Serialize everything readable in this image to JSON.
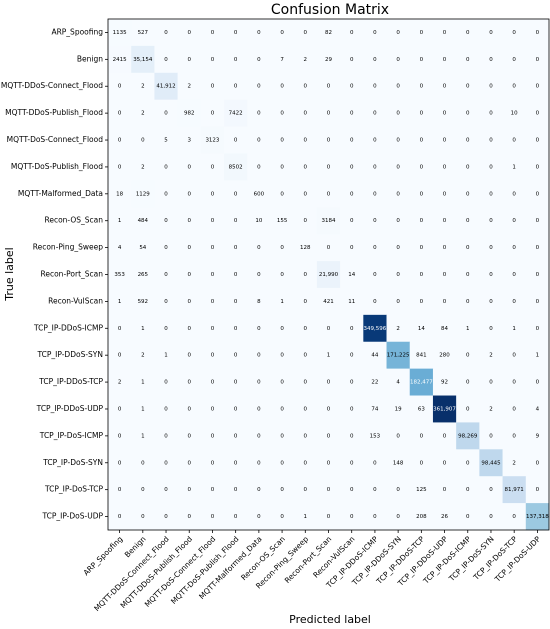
{
  "chart_data": {
    "type": "heatmap",
    "title": "Confusion Matrix",
    "x_label": "Predicted label",
    "y_label": "True label",
    "colormap": "Blues",
    "categories": [
      "ARP_Spoofing",
      "Benign",
      "MQTT-DDoS-Connect_Flood",
      "MQTT-DDoS-Publish_Flood",
      "MQTT-DoS-Connect_Flood",
      "MQTT-DoS-Publish_Flood",
      "MQTT-Malformed_Data",
      "Recon-OS_Scan",
      "Recon-Ping_Sweep",
      "Recon-Port_Scan",
      "Recon-VulScan",
      "TCP_IP-DDoS-ICMP",
      "TCP_IP-DDoS-SYN",
      "TCP_IP-DDoS-TCP",
      "TCP_IP-DDoS-UDP",
      "TCP_IP-DoS-ICMP",
      "TCP_IP-DoS-SYN",
      "TCP_IP-DoS-TCP",
      "TCP_IP-DoS-UDP"
    ],
    "values": [
      [
        1135,
        527,
        0,
        0,
        0,
        0,
        0,
        0,
        0,
        82,
        0,
        0,
        0,
        0,
        0,
        0,
        0,
        0,
        0
      ],
      [
        2415,
        35154,
        0,
        0,
        0,
        0,
        0,
        7,
        2,
        29,
        0,
        0,
        0,
        0,
        0,
        0,
        0,
        0,
        0
      ],
      [
        0,
        2,
        41912,
        2,
        0,
        0,
        0,
        0,
        0,
        0,
        0,
        0,
        0,
        0,
        0,
        0,
        0,
        0,
        0
      ],
      [
        0,
        2,
        0,
        982,
        0,
        7422,
        0,
        0,
        0,
        0,
        0,
        0,
        0,
        0,
        0,
        0,
        0,
        10,
        0
      ],
      [
        0,
        0,
        5,
        3,
        3123,
        0,
        0,
        0,
        0,
        0,
        0,
        0,
        0,
        0,
        0,
        0,
        0,
        0,
        0
      ],
      [
        0,
        2,
        0,
        0,
        0,
        8502,
        0,
        0,
        0,
        0,
        0,
        0,
        0,
        0,
        0,
        0,
        0,
        1,
        0
      ],
      [
        18,
        1129,
        0,
        0,
        0,
        0,
        600,
        0,
        0,
        0,
        0,
        0,
        0,
        0,
        0,
        0,
        0,
        0,
        0
      ],
      [
        1,
        484,
        0,
        0,
        0,
        0,
        10,
        155,
        0,
        3184,
        0,
        0,
        0,
        0,
        0,
        0,
        0,
        0,
        0
      ],
      [
        4,
        54,
        0,
        0,
        0,
        0,
        0,
        0,
        128,
        0,
        0,
        0,
        0,
        0,
        0,
        0,
        0,
        0,
        0
      ],
      [
        353,
        265,
        0,
        0,
        0,
        0,
        0,
        0,
        0,
        21990,
        14,
        0,
        0,
        0,
        0,
        0,
        0,
        0,
        0
      ],
      [
        1,
        592,
        0,
        0,
        0,
        0,
        8,
        1,
        0,
        421,
        11,
        0,
        0,
        0,
        0,
        0,
        0,
        0,
        0
      ],
      [
        0,
        1,
        0,
        0,
        0,
        0,
        0,
        0,
        0,
        0,
        0,
        349596,
        2,
        14,
        84,
        1,
        0,
        1,
        0
      ],
      [
        0,
        2,
        1,
        0,
        0,
        0,
        0,
        0,
        0,
        1,
        0,
        44,
        171225,
        841,
        280,
        0,
        2,
        0,
        1
      ],
      [
        2,
        1,
        0,
        0,
        0,
        0,
        0,
        0,
        0,
        0,
        0,
        22,
        4,
        182477,
        92,
        0,
        0,
        0,
        0
      ],
      [
        0,
        1,
        0,
        0,
        0,
        0,
        0,
        0,
        0,
        0,
        0,
        74,
        19,
        63,
        361907,
        0,
        2,
        0,
        4
      ],
      [
        0,
        1,
        0,
        0,
        0,
        0,
        0,
        0,
        0,
        0,
        0,
        153,
        0,
        0,
        0,
        98269,
        0,
        0,
        9
      ],
      [
        0,
        0,
        0,
        0,
        0,
        0,
        0,
        0,
        0,
        0,
        0,
        0,
        148,
        0,
        0,
        0,
        98445,
        2,
        0
      ],
      [
        0,
        0,
        0,
        0,
        0,
        0,
        0,
        0,
        0,
        0,
        0,
        0,
        0,
        125,
        0,
        0,
        0,
        81971,
        0
      ],
      [
        0,
        0,
        0,
        0,
        0,
        0,
        0,
        0,
        1,
        0,
        0,
        0,
        0,
        208,
        26,
        0,
        0,
        0,
        137318
      ]
    ],
    "value_labels": [
      [
        null,
        null,
        null,
        null,
        null,
        null,
        null,
        null,
        null,
        null,
        null,
        null,
        null,
        null,
        null,
        null,
        null,
        null,
        null
      ],
      [
        null,
        "35,154",
        null,
        null,
        null,
        null,
        null,
        null,
        null,
        null,
        null,
        null,
        null,
        null,
        null,
        null,
        null,
        null,
        null
      ],
      [
        null,
        null,
        "41,912",
        null,
        null,
        null,
        null,
        null,
        null,
        null,
        null,
        null,
        null,
        null,
        null,
        null,
        null,
        null,
        null
      ],
      [
        null,
        null,
        null,
        null,
        null,
        null,
        null,
        null,
        null,
        null,
        null,
        null,
        null,
        null,
        null,
        null,
        null,
        null,
        null
      ],
      [
        null,
        null,
        null,
        null,
        null,
        null,
        null,
        null,
        null,
        null,
        null,
        null,
        null,
        null,
        null,
        null,
        null,
        null,
        null
      ],
      [
        null,
        null,
        null,
        null,
        null,
        null,
        null,
        null,
        null,
        null,
        null,
        null,
        null,
        null,
        null,
        null,
        null,
        null,
        null
      ],
      [
        null,
        null,
        null,
        null,
        null,
        null,
        null,
        null,
        null,
        null,
        null,
        null,
        null,
        null,
        null,
        null,
        null,
        null,
        null
      ],
      [
        null,
        null,
        null,
        null,
        null,
        null,
        null,
        null,
        null,
        null,
        null,
        null,
        null,
        null,
        null,
        null,
        null,
        null,
        null
      ],
      [
        null,
        null,
        null,
        null,
        null,
        null,
        null,
        null,
        null,
        null,
        null,
        null,
        null,
        null,
        null,
        null,
        null,
        null,
        null
      ],
      [
        null,
        null,
        null,
        null,
        null,
        null,
        null,
        null,
        null,
        "21,990",
        null,
        null,
        null,
        null,
        null,
        null,
        null,
        null,
        null
      ],
      [
        null,
        null,
        null,
        null,
        null,
        null,
        null,
        null,
        null,
        null,
        null,
        null,
        null,
        null,
        null,
        null,
        null,
        null,
        null
      ],
      [
        null,
        null,
        null,
        null,
        null,
        null,
        null,
        null,
        null,
        null,
        null,
        "349,596",
        null,
        null,
        null,
        null,
        null,
        null,
        null
      ],
      [
        null,
        null,
        null,
        null,
        null,
        null,
        null,
        null,
        null,
        null,
        null,
        null,
        "171,225",
        null,
        null,
        null,
        null,
        null,
        null
      ],
      [
        null,
        null,
        null,
        null,
        null,
        null,
        null,
        null,
        null,
        null,
        null,
        null,
        null,
        "182,477",
        null,
        null,
        null,
        null,
        null
      ],
      [
        null,
        null,
        null,
        null,
        null,
        null,
        null,
        null,
        null,
        null,
        null,
        null,
        null,
        null,
        "361,907",
        null,
        null,
        null,
        null
      ],
      [
        null,
        null,
        null,
        null,
        null,
        null,
        null,
        null,
        null,
        null,
        null,
        null,
        null,
        null,
        null,
        "98,269",
        null,
        null,
        null
      ],
      [
        null,
        null,
        null,
        null,
        null,
        null,
        null,
        null,
        null,
        null,
        null,
        null,
        null,
        null,
        null,
        null,
        "98,445",
        null,
        null
      ],
      [
        null,
        null,
        null,
        null,
        null,
        null,
        null,
        null,
        null,
        null,
        null,
        null,
        null,
        null,
        null,
        null,
        null,
        "81,971",
        null
      ],
      [
        null,
        null,
        null,
        null,
        null,
        null,
        null,
        null,
        null,
        null,
        null,
        null,
        null,
        null,
        null,
        null,
        null,
        null,
        "137,318"
      ]
    ]
  }
}
